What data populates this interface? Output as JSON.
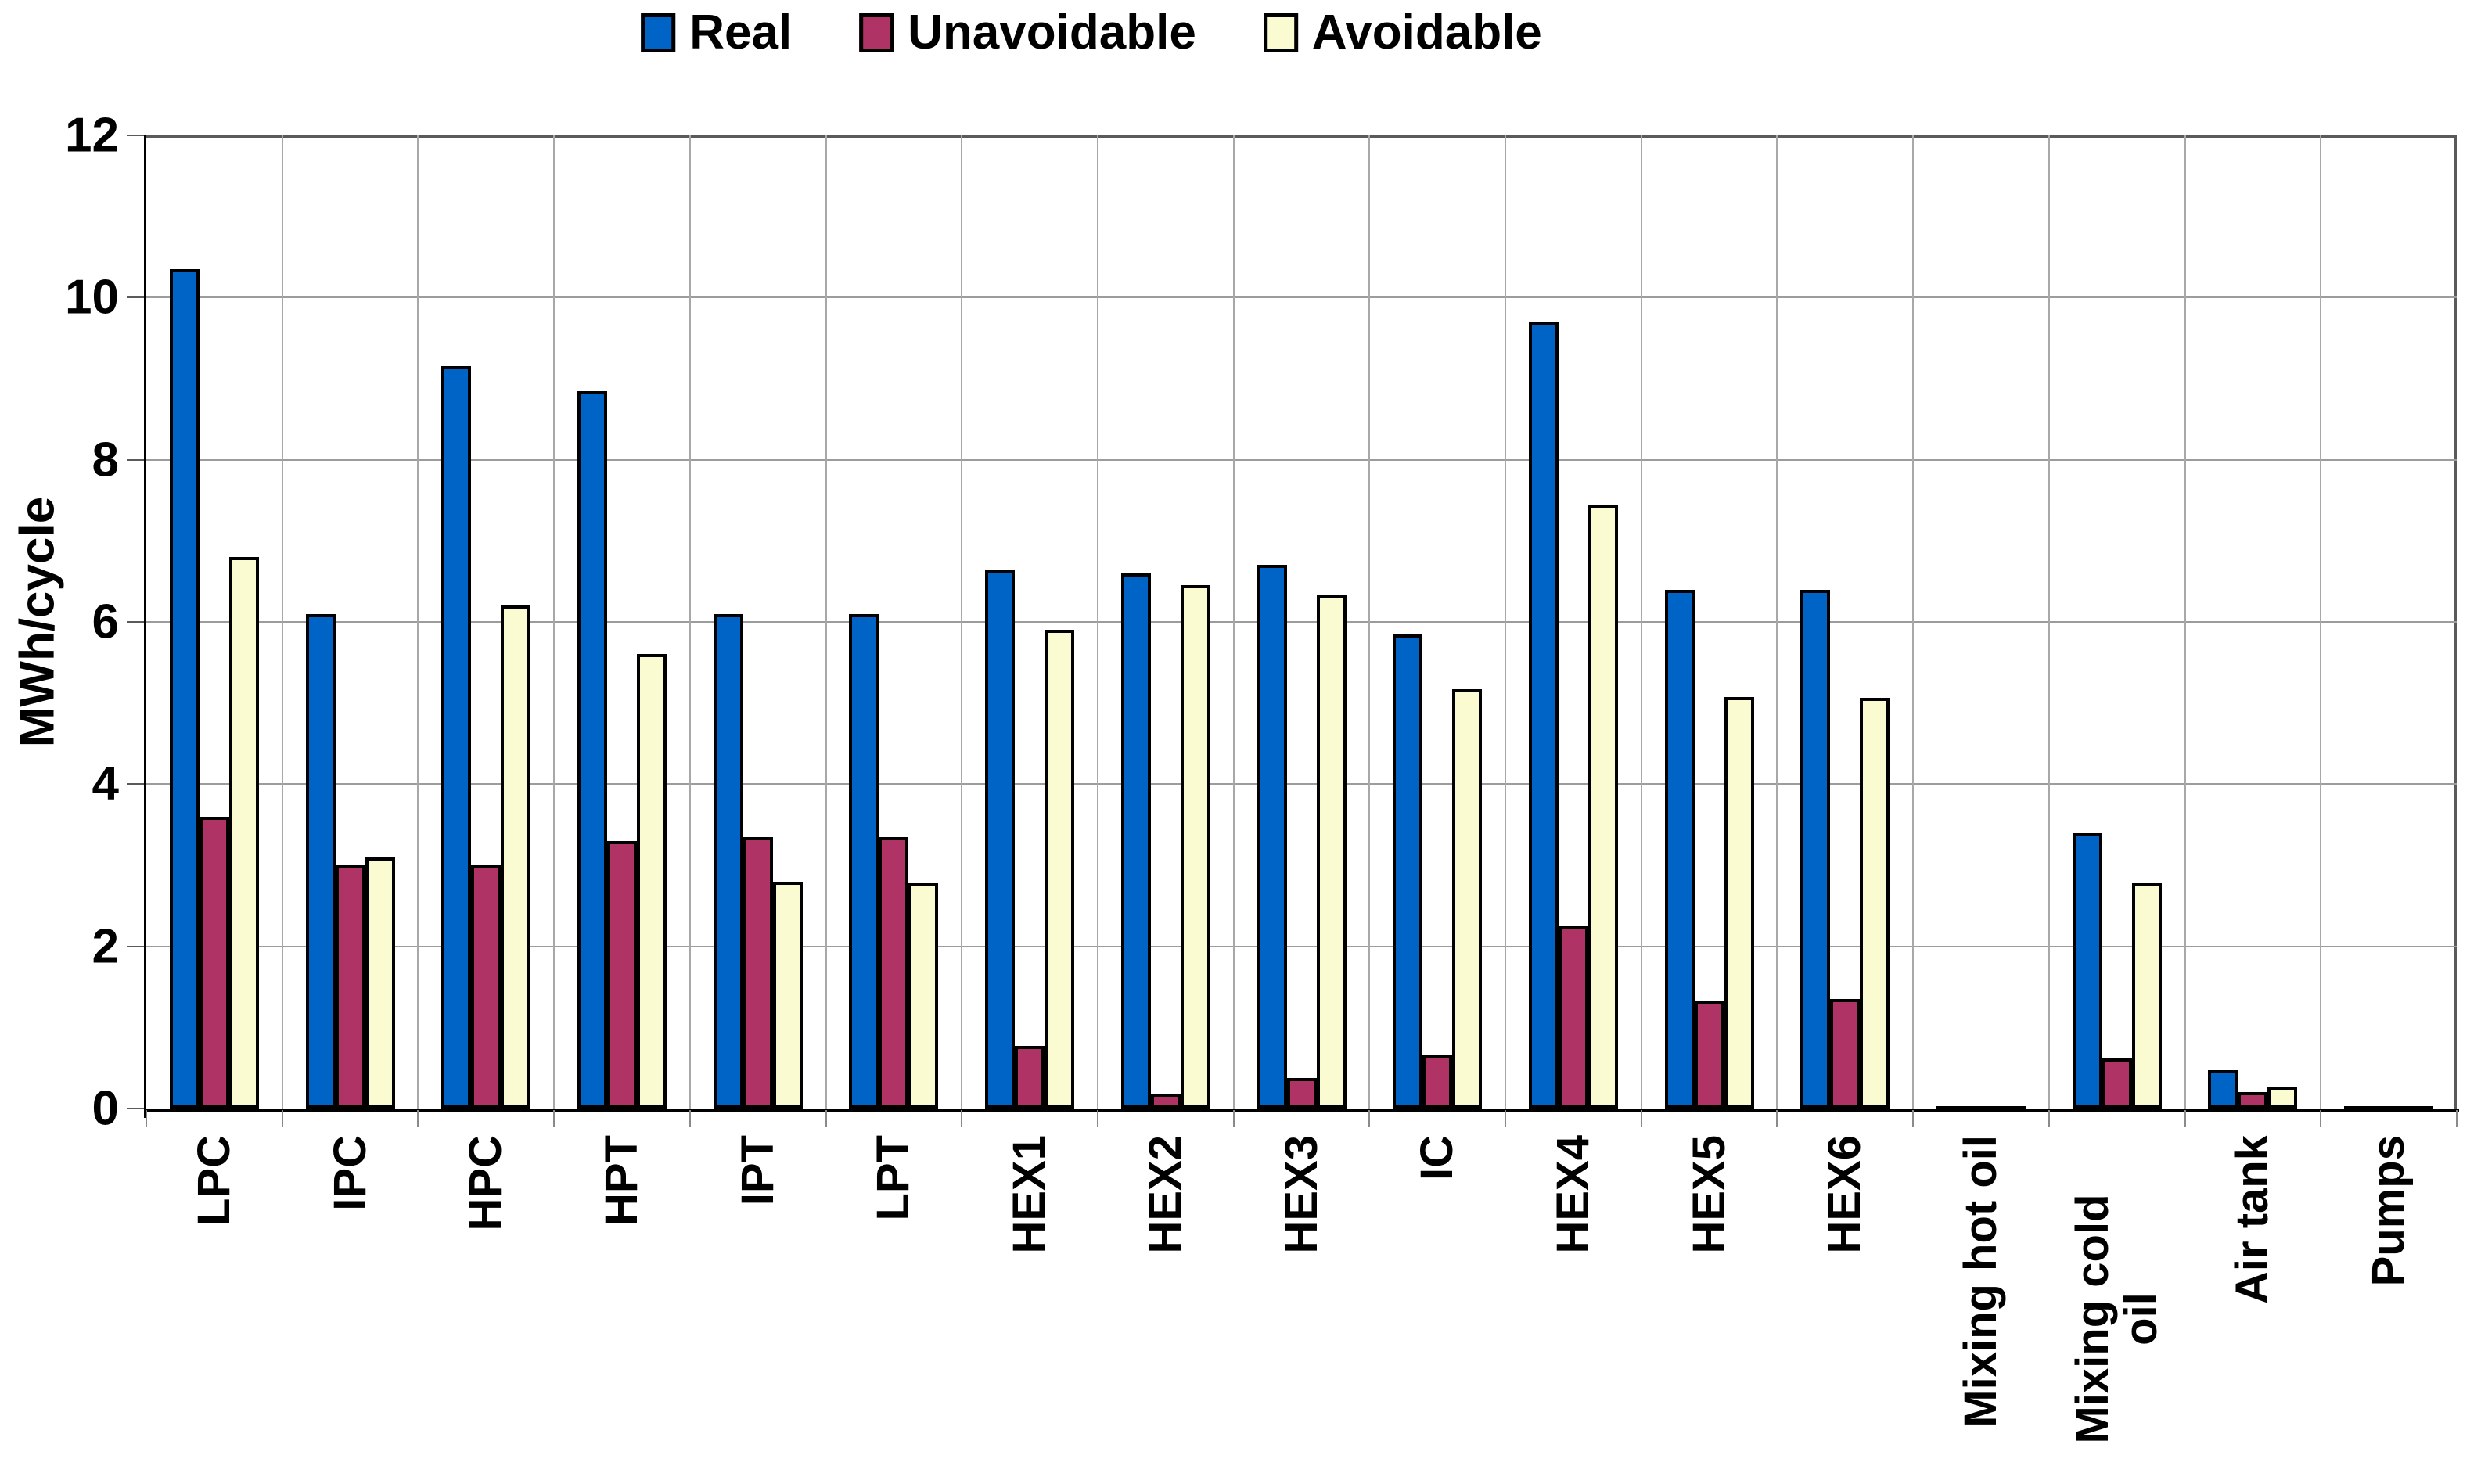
{
  "chart_data": {
    "type": "bar",
    "title": "",
    "xlabel": "",
    "ylabel": "MWh/cycle",
    "ylim": [
      0,
      12
    ],
    "yticks": [
      0,
      2,
      4,
      6,
      8,
      10,
      12
    ],
    "grid": true,
    "legend_position": "top-center",
    "categories": [
      "LPC",
      "IPC",
      "HPC",
      "HPT",
      "IPT",
      "LPT",
      "HEX1",
      "HEX2",
      "HEX3",
      "IC",
      "HEX4",
      "HEX5",
      "HEX6",
      "Mixing hot oil",
      "Mixing cold oil",
      "Air tank",
      "Pumps"
    ],
    "category_display": [
      "LPC",
      "IPC",
      "HPC",
      "HPT",
      "IPT",
      "LPT",
      "HEX1",
      "HEX2",
      "HEX3",
      "IC",
      "HEX4",
      "HEX5",
      "HEX6",
      "Mixing hot oil",
      "Mixing cold\noil",
      "Air tank",
      "Pumps"
    ],
    "series": [
      {
        "name": "Real",
        "color": "#0063C6",
        "values": [
          10.35,
          6.1,
          9.15,
          8.85,
          6.1,
          6.1,
          6.65,
          6.6,
          6.7,
          5.85,
          9.7,
          6.4,
          6.4,
          0.02,
          3.4,
          0.47,
          0.02
        ]
      },
      {
        "name": "Unavoidable",
        "color": "#B03366",
        "values": [
          3.6,
          3.0,
          3.0,
          3.3,
          3.35,
          3.35,
          0.77,
          0.18,
          0.38,
          0.67,
          2.25,
          1.32,
          1.35,
          0.02,
          0.62,
          0.2,
          0.02
        ]
      },
      {
        "name": "Avoidable",
        "color": "#FBFBD2",
        "values": [
          6.8,
          3.1,
          6.2,
          5.6,
          2.8,
          2.78,
          5.9,
          6.45,
          6.33,
          5.17,
          7.45,
          5.07,
          5.06,
          0.02,
          2.78,
          0.27,
          0.02
        ]
      }
    ]
  },
  "colors": {
    "gridline": "#9c9c9c",
    "axis": "#000000",
    "background": "#ffffff",
    "bar_border": "#000000"
  }
}
